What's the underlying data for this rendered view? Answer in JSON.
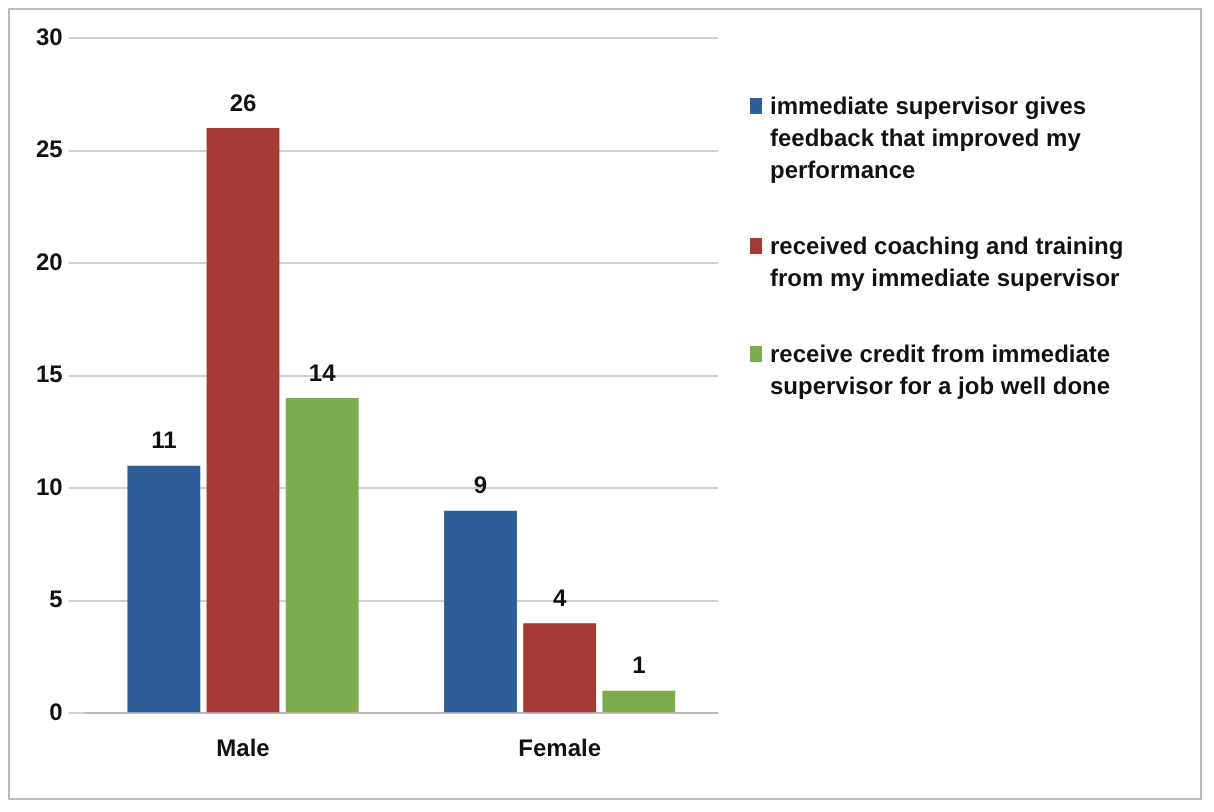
{
  "chart_data": {
    "type": "bar",
    "categories": [
      "Male",
      "Female"
    ],
    "series": [
      {
        "name": "immediate supervisor gives feedback that improved my performance",
        "color": "#2e5e9a",
        "values": [
          11,
          9
        ]
      },
      {
        "name": "received coaching and training from my immediate supervisor",
        "color": "#a33a36",
        "values": [
          26,
          4
        ]
      },
      {
        "name": "receive credit from immediate supervisor for a job well done",
        "color": "#7dab4e",
        "values": [
          14,
          1
        ]
      }
    ],
    "ylim": [
      0,
      30
    ],
    "yticks": [
      0,
      5,
      10,
      15,
      20,
      25,
      30
    ],
    "grid": "y",
    "legend": "right",
    "data_labels": true
  }
}
